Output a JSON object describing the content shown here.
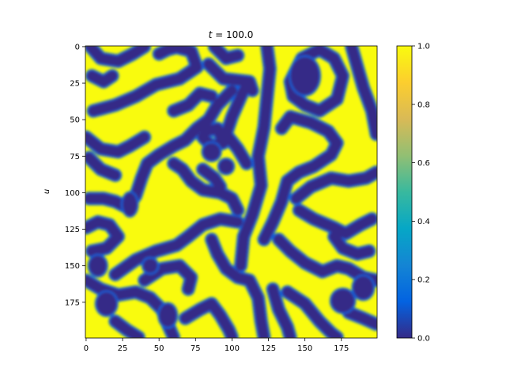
{
  "chart_data": {
    "type": "heatmap",
    "title": "t = 100.0",
    "title_parts": {
      "var": "t",
      "rest": " = 100.0"
    },
    "xlabel": "",
    "ylabel": "u",
    "x_ticks": [
      0,
      25,
      50,
      75,
      100,
      125,
      150,
      175
    ],
    "y_ticks": [
      0,
      25,
      50,
      75,
      100,
      125,
      150,
      175
    ],
    "x_range": [
      0,
      199
    ],
    "y_range": [
      0,
      199
    ],
    "y_axis_inverted": true,
    "grid": false,
    "colorbar": {
      "min": 0.0,
      "max": 1.0,
      "ticks": [
        "0.0",
        "0.2",
        "0.4",
        "0.6",
        "0.8",
        "1.0"
      ],
      "colormap": "parula-like",
      "colors": [
        "#352a87",
        "#0363e1",
        "#1485d4",
        "#06a7c6",
        "#38b99e",
        "#92bf73",
        "#d9ba56",
        "#fcce2e",
        "#f9fb0e"
      ]
    },
    "field_description_values": {
      "low_value": 0.0,
      "high_value": 1.0
    }
  }
}
